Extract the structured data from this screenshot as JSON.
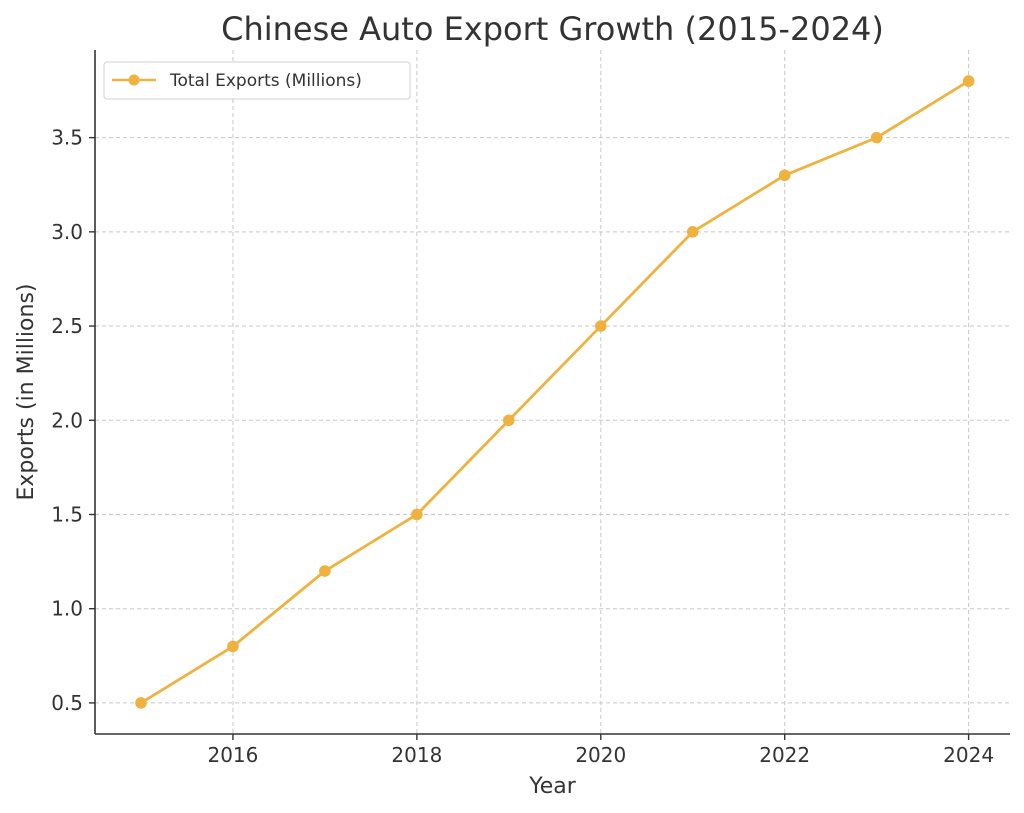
{
  "chart_data": {
    "type": "line",
    "title": "Chinese Auto Export Growth (2015-2024)",
    "xlabel": "Year",
    "ylabel": "Exports (in Millions)",
    "x": [
      2015,
      2016,
      2017,
      2018,
      2019,
      2020,
      2021,
      2022,
      2023,
      2024
    ],
    "series": [
      {
        "name": "Total Exports (Millions)",
        "color": "#f0b23e",
        "marker": "circle",
        "values": [
          0.5,
          0.8,
          1.2,
          1.5,
          2.0,
          2.5,
          3.0,
          3.3,
          3.5,
          3.8
        ]
      }
    ],
    "xlim": [
      2014.5,
      2024.45
    ],
    "ylim": [
      0.335,
      3.965
    ],
    "xticks": [
      2016,
      2018,
      2020,
      2022,
      2024
    ],
    "xtick_labels": [
      "2016",
      "2018",
      "2020",
      "2022",
      "2024"
    ],
    "yticks": [
      0.5,
      1.0,
      1.5,
      2.0,
      2.5,
      3.0,
      3.5
    ],
    "ytick_labels": [
      "0.5",
      "1.0",
      "1.5",
      "2.0",
      "2.5",
      "3.0",
      "3.5"
    ],
    "grid": true,
    "legend_position": "top-left"
  }
}
